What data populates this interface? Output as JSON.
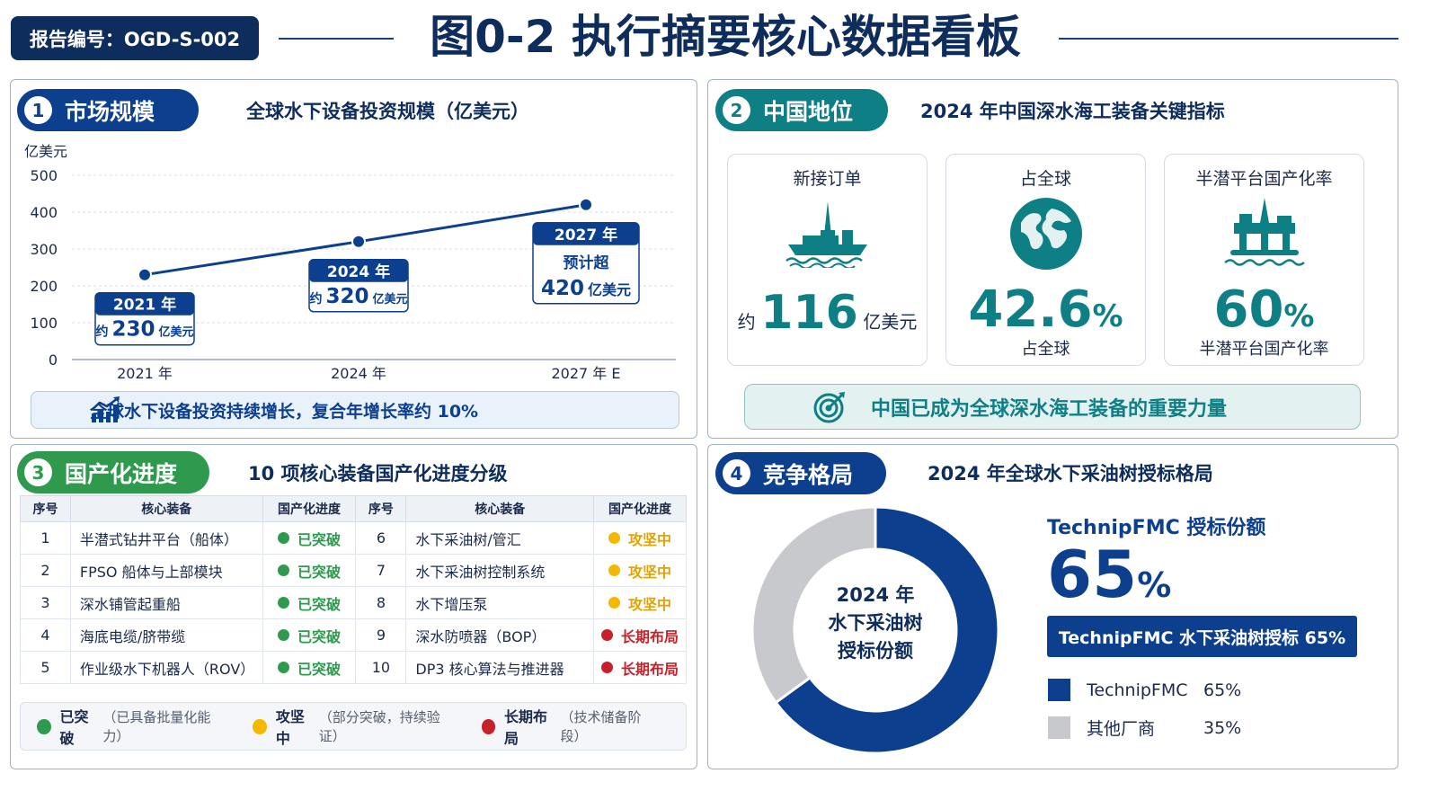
{
  "header": {
    "report_id": "报告编号：OGD-S-002",
    "title": "图0-2 执行摘要核心数据看板"
  },
  "panel1": {
    "num": "1",
    "tag": "市场规模",
    "subtitle": "全球水下设备投资规模（亿美元）",
    "banner": "全球水下设备投资持续增长，复合年增长率约 10%",
    "icon": "growth-chart-icon"
  },
  "panel2": {
    "num": "2",
    "tag": "中国地位",
    "subtitle": "2024 年中国深水海工装备关键指标",
    "cards": [
      {
        "label": "新接订单",
        "prefix": "约",
        "value": "116",
        "unit": "亿美元",
        "sub": "",
        "icon": "drill-ship-icon"
      },
      {
        "label": "占全球",
        "prefix": "",
        "value": "42.6",
        "unit": "%",
        "sub": "占全球",
        "icon": "globe-icon"
      },
      {
        "label": "半潜平台国产化率",
        "prefix": "",
        "value": "60",
        "unit": "%",
        "sub": "半潜平台国产化率",
        "icon": "semi-sub-platform-icon"
      }
    ],
    "banner": "中国已成为全球深水海工装备的重要力量",
    "banner_icon": "target-icon"
  },
  "panel3": {
    "num": "3",
    "tag": "国产化进度",
    "subtitle": "10 项核心装备国产化进度分级",
    "headers": [
      "序号",
      "核心装备",
      "国产化进度",
      "序号",
      "核心装备",
      "国产化进度"
    ],
    "rows": [
      {
        "n1": "1",
        "e1": "半潜式钻井平台（船体）",
        "s1": "已突破",
        "c1": "done",
        "n2": "6",
        "e2": "水下采油树/管汇",
        "s2": "攻坚中",
        "c2": "fight"
      },
      {
        "n1": "2",
        "e1": "FPSO 船体与上部模块",
        "s1": "已突破",
        "c1": "done",
        "n2": "7",
        "e2": "水下采油树控制系统",
        "s2": "攻坚中",
        "c2": "fight"
      },
      {
        "n1": "3",
        "e1": "深水铺管起重船",
        "s1": "已突破",
        "c1": "done",
        "n2": "8",
        "e2": "水下增压泵",
        "s2": "攻坚中",
        "c2": "fight"
      },
      {
        "n1": "4",
        "e1": "海底电缆/脐带缆",
        "s1": "已突破",
        "c1": "done",
        "n2": "9",
        "e2": "深水防喷器（BOP）",
        "s2": "长期布局",
        "c2": "long"
      },
      {
        "n1": "5",
        "e1": "作业级水下机器人（ROV）",
        "s1": "已突破",
        "c1": "done",
        "n2": "10",
        "e2": "DP3 核心算法与推进器",
        "s2": "长期布局",
        "c2": "long"
      }
    ],
    "legend": [
      {
        "name": "已突破",
        "desc": "（已具备批量化能力）",
        "color": "#2f9a4e"
      },
      {
        "name": "攻坚中",
        "desc": "（部分突破，持续验证）",
        "color": "#f5b800"
      },
      {
        "name": "长期布局",
        "desc": "（技术储备阶段）",
        "color": "#c8202a"
      }
    ]
  },
  "panel4": {
    "num": "4",
    "tag": "竞争格局",
    "subtitle": "2024 年全球水下采油树授标格局",
    "center_lines": [
      "2024 年",
      "水下采油树",
      "授标份额"
    ],
    "share_title": "TechnipFMC 授标份额",
    "share_value": "65",
    "share_unit": "%",
    "bar_text": "TechnipFMC 水下采油树授标 65%"
  },
  "colors": {
    "navy": "#0f2d5c",
    "blue": "#0d3f8f",
    "teal": "#0f7f86",
    "green": "#2f9a4e",
    "amber": "#f5b800",
    "red": "#c8202a",
    "gray": "#c8c9cc"
  },
  "chart_data": [
    {
      "type": "line",
      "ylabel": "亿美元",
      "ylim": [
        0,
        500
      ],
      "yticks": [
        "0",
        "100",
        "200",
        "300",
        "400",
        "500"
      ],
      "categories": [
        "2021 年",
        "2024 年",
        "2027 年 E"
      ],
      "values": [
        230,
        320,
        420
      ],
      "annotations": [
        {
          "year": "2021 年",
          "prefix": "约",
          "value": "230",
          "unit": "亿美元",
          "extra": ""
        },
        {
          "year": "2024 年",
          "prefix": "约",
          "value": "320",
          "unit": "亿美元",
          "extra": ""
        },
        {
          "year": "2027 年",
          "prefix": "",
          "value": "420",
          "unit": "亿美元",
          "extra": "预计超"
        }
      ],
      "grid": true
    },
    {
      "type": "pie",
      "donut": true,
      "title": "2024 年 水下采油树 授标份额",
      "labels": [
        "TechnipFMC",
        "其他厂商"
      ],
      "values": [
        65,
        35
      ],
      "value_labels": [
        "65%",
        "35%"
      ],
      "colors": [
        "#0d3f8f",
        "#c8c9cc"
      ]
    }
  ]
}
